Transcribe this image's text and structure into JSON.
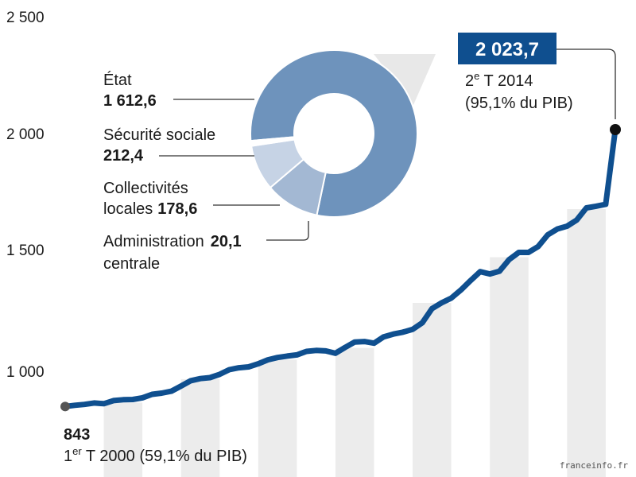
{
  "chart_data": [
    {
      "type": "line",
      "unit": "",
      "y_ticks": [
        "2 500",
        "2 000",
        "1 500",
        "1 000"
      ],
      "y_tick_values": [
        2500,
        2000,
        1500,
        1000
      ],
      "ylim": [
        750,
        2550
      ],
      "x_start": "1er T 2000",
      "x_end": "2e T 2014",
      "quarters_count": 58,
      "values": [
        843,
        848,
        852,
        858,
        855,
        868,
        872,
        873,
        880,
        895,
        900,
        908,
        930,
        953,
        962,
        966,
        980,
        1000,
        1008,
        1012,
        1025,
        1042,
        1052,
        1058,
        1063,
        1078,
        1082,
        1080,
        1070,
        1095,
        1118,
        1120,
        1113,
        1140,
        1152,
        1160,
        1172,
        1200,
        1260,
        1285,
        1305,
        1340,
        1380,
        1418,
        1408,
        1420,
        1470,
        1500,
        1500,
        1525,
        1575,
        1600,
        1612,
        1638,
        1690,
        1697,
        1705,
        2023.7
      ],
      "bar_label_note": "",
      "start_label": {
        "value": "843",
        "label_prefix": "1",
        "label_sup": "er",
        "label_rest": " T 2000 (59,1% du PIB)"
      },
      "end_label": {
        "value": "2 023,7",
        "label_prefix": "2",
        "label_sup": "e",
        "label_rest": " T 2014",
        "label_line2": "(95,1% du PIB)"
      },
      "colors": {
        "line": "#0f4f8f",
        "bands": "#ececec",
        "end_box": "#0f4f8f",
        "marker": "#111111"
      }
    },
    {
      "type": "pie",
      "style": "donut",
      "slices": [
        {
          "name": "État",
          "value": 1612.6,
          "value_text": "1 612,6",
          "color": "#6e93bc"
        },
        {
          "name": "Sécurité sociale",
          "value": 212.4,
          "value_text": "212,4",
          "color": "#a3b8d3"
        },
        {
          "name_line1": "Collectivités",
          "name_line2": "locales",
          "name": "Collectivités locales",
          "value": 178.6,
          "value_text": "178,6",
          "color": "#c6d3e5"
        },
        {
          "name_line1": "Administration",
          "name_line2": "centrale",
          "name": "Administration centrale",
          "value": 20.1,
          "value_text": "20,1",
          "color": "#ffffff"
        }
      ]
    }
  ],
  "credit": "franceinfo.fr"
}
